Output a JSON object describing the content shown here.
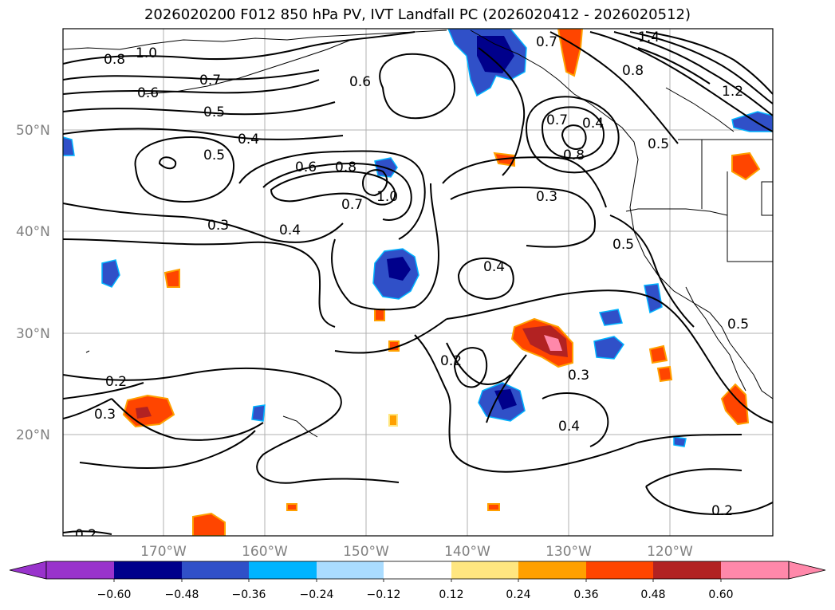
{
  "title": "2026020200 F012 850 hPa PV, IVT Landfall PC (2026020412 - 2026020512)",
  "map": {
    "lat_labels": [
      "50°N",
      "40°N",
      "30°N",
      "20°N"
    ],
    "lon_labels": [
      "170°W",
      "160°W",
      "150°W",
      "140°W",
      "130°W",
      "120°W"
    ],
    "contour_labels": [
      "1.0",
      "0.8",
      "0.7",
      "0.6",
      "0.5",
      "0.5",
      "0.4",
      "0.6",
      "0.8",
      "0.7",
      "1.0",
      "0.3",
      "0.4",
      "0.6",
      "0.7",
      "0.7",
      "0.8",
      "0.4",
      "0.5",
      "0.3",
      "1.4",
      "0.8",
      "1.2",
      "0.5",
      "0.4",
      "0.2",
      "0.3",
      "0.2",
      "0.3",
      "0.4",
      "0.5",
      "0.2",
      "0.2"
    ],
    "fill_colors": {
      "deep_neg": "#00008b",
      "neg_2": "#3050c8",
      "neg_3": "#00b4ff",
      "neg_4": "#aadcff",
      "pos_1": "#ffe680",
      "pos_2": "#ffa000",
      "pos_3": "#ff4500",
      "pos_4": "#b22222",
      "pos_5": "#ff88aa"
    }
  },
  "colorbar": {
    "colors": [
      "#9933cc",
      "#00008b",
      "#3050c8",
      "#00b4ff",
      "#aadcff",
      "#ffffff",
      "#ffe680",
      "#ffa000",
      "#ff4500",
      "#b22222",
      "#ff88aa"
    ],
    "ticks": [
      "−0.60",
      "−0.48",
      "−0.36",
      "−0.24",
      "−0.12",
      "0.12",
      "0.24",
      "0.36",
      "0.48",
      "0.60"
    ]
  }
}
